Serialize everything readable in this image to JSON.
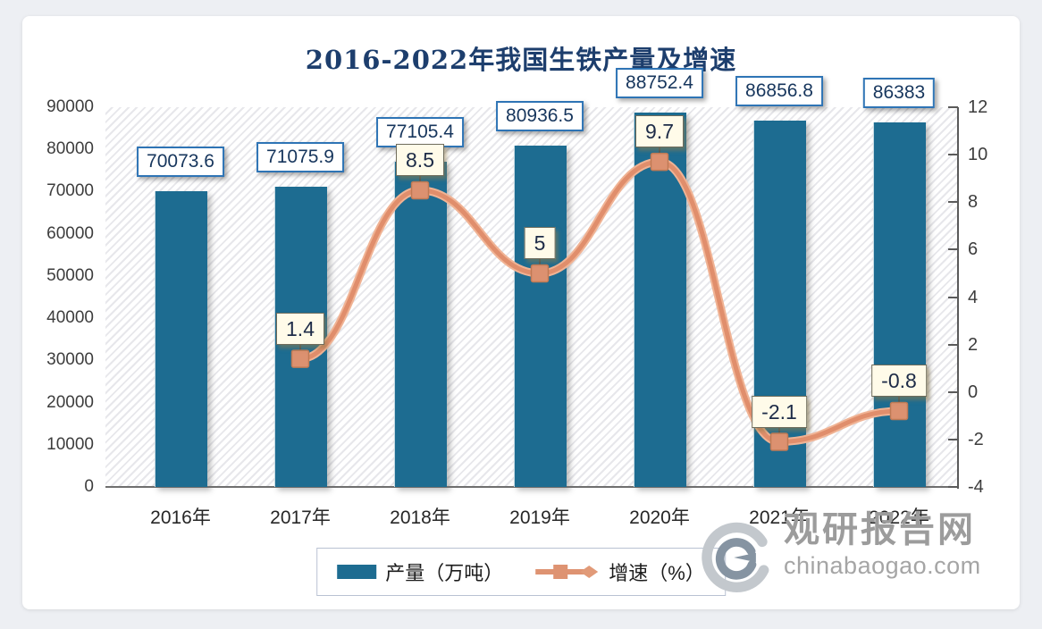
{
  "title": "2016-2022年我国生铁产量及增速",
  "legend": {
    "bar_label": "产量（万吨）",
    "line_label": "增速（%）"
  },
  "watermark": {
    "site_name": "观研报告网",
    "site_domain": "chinabaogao.com"
  },
  "colors": {
    "bar": "#1d6c91",
    "line_outer": "#f0b394",
    "line_core": "#e08e6c",
    "marker_fill": "#dc9170",
    "marker_edge": "#bf7a55",
    "connector": "#4a4a4a",
    "title": "#1d3e6d",
    "value_border": "#2e74b5",
    "value_text": "#17365d",
    "growth_bg": "#fffbe9",
    "growth_border": "#6f6c5c",
    "axis": "#5a5a5a",
    "watermark_gray": "#9c9c9c"
  },
  "chart_data": {
    "type": "bar+line combo",
    "title": "2016-2022年我国生铁产量及增速",
    "categories": [
      "2016年",
      "2017年",
      "2018年",
      "2019年",
      "2020年",
      "2021年",
      "2022年"
    ],
    "series": [
      {
        "name": "产量（万吨）",
        "type": "bar",
        "axis": "left",
        "values": [
          70073.6,
          71075.9,
          77105.4,
          80936.5,
          88752.4,
          86856.8,
          86383
        ],
        "labels": [
          "70073.6",
          "71075.9",
          "77105.4",
          "80936.5",
          "88752.4",
          "86856.8",
          "86383"
        ]
      },
      {
        "name": "增速（%）",
        "type": "line",
        "axis": "right",
        "values": [
          null,
          1.4,
          8.5,
          5,
          9.7,
          -2.1,
          -0.8
        ],
        "labels": [
          null,
          "1.4",
          "8.5",
          "5",
          "9.7",
          "-2.1",
          "-0.8"
        ]
      }
    ],
    "left_axis": {
      "min": 0,
      "max": 90000,
      "step": 10000,
      "ticks": [
        "0",
        "10000",
        "20000",
        "30000",
        "40000",
        "50000",
        "60000",
        "70000",
        "80000",
        "90000"
      ]
    },
    "right_axis": {
      "min": -4,
      "max": 12,
      "step": 2,
      "ticks": [
        "-4",
        "-2",
        "0",
        "2",
        "4",
        "6",
        "8",
        "10",
        "12"
      ]
    },
    "grid": false,
    "legend_position": "bottom"
  }
}
